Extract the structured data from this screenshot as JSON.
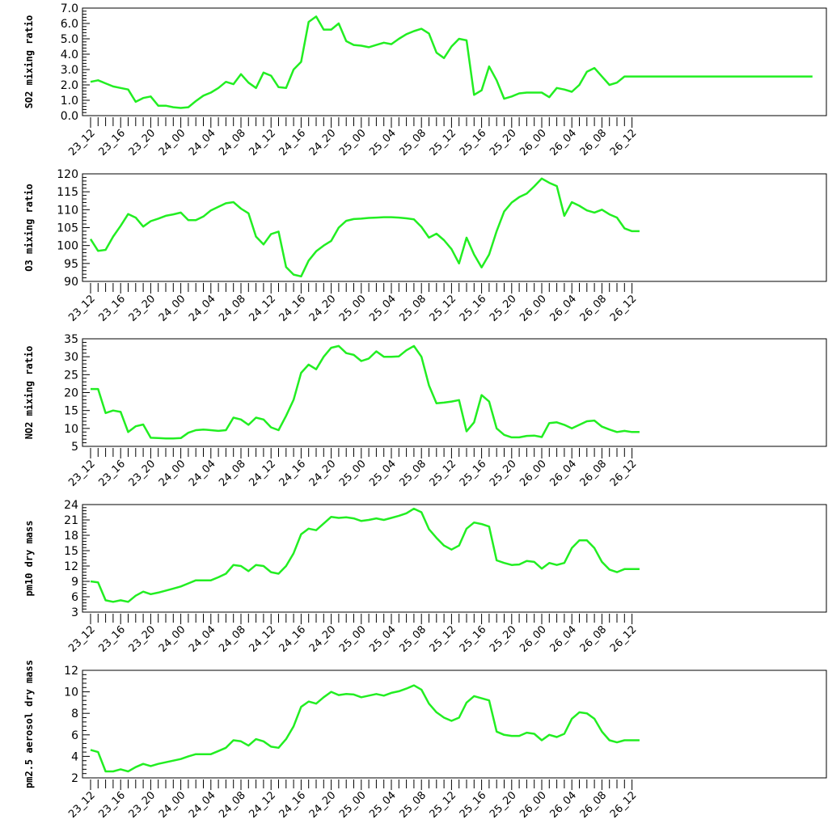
{
  "line_color": "#22ee22",
  "chart_data": [
    {
      "type": "line",
      "ylabel": "SO2 mixing ratio",
      "ylim": [
        0,
        7
      ],
      "yticks": [
        "0.0",
        "1.0",
        "2.0",
        "3.0",
        "4.0",
        "5.0",
        "6.0",
        "7.0"
      ],
      "xlim": [
        0,
        96
      ],
      "xticks": [
        "23_12",
        "23_16",
        "23_20",
        "24_00",
        "24_04",
        "24_08",
        "24_12",
        "24_16",
        "24_20",
        "25_00",
        "25_04",
        "25_08",
        "25_12",
        "25_16",
        "25_20",
        "26_00",
        "26_04",
        "26_08",
        "26_12"
      ],
      "grid": false,
      "x": [
        0,
        1,
        2,
        3,
        4,
        5,
        6,
        7,
        8,
        9,
        10,
        11,
        12,
        13,
        14,
        15,
        16,
        17,
        18,
        19,
        20,
        21,
        22,
        23,
        24,
        25,
        26,
        27,
        28,
        29,
        30,
        31,
        32,
        33,
        34,
        35,
        36,
        37,
        38,
        39,
        40,
        41,
        42,
        43,
        44,
        45,
        46,
        47,
        48,
        49,
        50,
        51,
        52,
        53,
        54,
        55,
        56,
        57,
        58,
        59,
        60,
        61,
        62,
        63,
        64,
        65,
        66,
        67,
        68,
        69,
        70,
        71,
        72,
        73,
        74,
        75,
        76,
        77,
        78,
        79,
        80,
        81,
        82,
        83,
        84,
        85,
        86,
        87,
        88,
        89,
        90,
        91,
        92,
        93,
        94,
        95,
        96
      ],
      "values": [
        2.2,
        2.3,
        2.1,
        1.9,
        1.8,
        1.7,
        0.9,
        1.15,
        1.25,
        0.65,
        0.65,
        0.55,
        0.5,
        0.55,
        0.95,
        1.3,
        1.5,
        1.8,
        2.2,
        2.05,
        2.7,
        2.15,
        1.8,
        2.8,
        2.6,
        1.85,
        1.8,
        3.0,
        3.5,
        6.1,
        6.45,
        5.6,
        5.6,
        6.0,
        4.85,
        4.6,
        4.55,
        4.45,
        4.6,
        4.75,
        4.65,
        5.0,
        5.3,
        5.5,
        5.65,
        5.35,
        4.1,
        3.75,
        4.5,
        5.0,
        4.9,
        1.35,
        1.65,
        3.2,
        2.3,
        1.1,
        1.25,
        1.45,
        1.5,
        1.5,
        1.5,
        1.2,
        1.8,
        1.7,
        1.55,
        2.0,
        2.85,
        3.1,
        2.55,
        2.0,
        2.15,
        2.55,
        2.55,
        2.55,
        2.55,
        2.55,
        2.55,
        2.55,
        2.55,
        2.55,
        2.55,
        2.55,
        2.55,
        2.55,
        2.55,
        2.55,
        2.55,
        2.55,
        2.55,
        2.55,
        2.55,
        2.55,
        2.55,
        2.55,
        2.55,
        2.55,
        2.55
      ]
    },
    {
      "type": "line",
      "ylabel": "O3 mixing ratio",
      "ylim": [
        90,
        120
      ],
      "yticks": [
        "90",
        "95",
        "100",
        "105",
        "110",
        "115",
        "120"
      ],
      "xlim": [
        0,
        96
      ],
      "xticks": [
        "23_12",
        "23_16",
        "23_20",
        "24_00",
        "24_04",
        "24_08",
        "24_12",
        "24_16",
        "24_20",
        "25_00",
        "25_04",
        "25_08",
        "25_12",
        "25_16",
        "25_20",
        "26_00",
        "26_04",
        "26_08",
        "26_12"
      ],
      "grid": false,
      "x": [
        0,
        1,
        2,
        3,
        4,
        5,
        6,
        7,
        8,
        9,
        10,
        11,
        12,
        13,
        14,
        15,
        16,
        17,
        18,
        19,
        20,
        21,
        22,
        23,
        24,
        25,
        26,
        27,
        28,
        29,
        30,
        31,
        32,
        33,
        34,
        35,
        36,
        37,
        38,
        39,
        40,
        41,
        42,
        43,
        44,
        45,
        46,
        47,
        48,
        49,
        50,
        51,
        52,
        53,
        54,
        55,
        56,
        57,
        58,
        59,
        60,
        61,
        62,
        63,
        64,
        65,
        66,
        67,
        68,
        69,
        70,
        71,
        72,
        73
      ],
      "values": [
        101.8,
        98.5,
        98.8,
        102.5,
        105.5,
        108.8,
        107.8,
        105.3,
        106.8,
        107.5,
        108.3,
        108.7,
        109.2,
        107.1,
        107.1,
        108.1,
        109.8,
        110.8,
        111.8,
        112.1,
        110.3,
        109.0,
        102.5,
        100.3,
        103.2,
        103.9,
        94.0,
        91.9,
        91.4,
        95.8,
        98.4,
        100.0,
        101.3,
        105.0,
        106.9,
        107.4,
        107.5,
        107.7,
        107.8,
        107.9,
        107.9,
        107.8,
        107.6,
        107.3,
        105.2,
        102.2,
        103.3,
        101.5,
        99.0,
        95.0,
        102.2,
        97.5,
        93.9,
        97.5,
        104.0,
        109.5,
        112.0,
        113.5,
        114.5,
        116.5,
        118.7,
        117.5,
        116.6,
        108.3,
        112.1,
        111.1,
        109.8,
        109.2,
        110.0,
        108.7,
        107.8,
        104.8,
        104.0,
        104.0
      ]
    },
    {
      "type": "line",
      "ylabel": "NO2 mixing ratio",
      "ylim": [
        5,
        35
      ],
      "yticks": [
        "5",
        "10",
        "15",
        "20",
        "25",
        "30",
        "35"
      ],
      "xlim": [
        0,
        96
      ],
      "xticks": [
        "23_12",
        "23_16",
        "23_20",
        "24_00",
        "24_04",
        "24_08",
        "24_12",
        "24_16",
        "24_20",
        "25_00",
        "25_04",
        "25_08",
        "25_12",
        "25_16",
        "25_20",
        "26_00",
        "26_04",
        "26_08",
        "26_12"
      ],
      "grid": false,
      "x": [
        0,
        1,
        2,
        3,
        4,
        5,
        6,
        7,
        8,
        9,
        10,
        11,
        12,
        13,
        14,
        15,
        16,
        17,
        18,
        19,
        20,
        21,
        22,
        23,
        24,
        25,
        26,
        27,
        28,
        29,
        30,
        31,
        32,
        33,
        34,
        35,
        36,
        37,
        38,
        39,
        40,
        41,
        42,
        43,
        44,
        45,
        46,
        47,
        48,
        49,
        50,
        51,
        52,
        53,
        54,
        55,
        56,
        57,
        58,
        59,
        60,
        61,
        62,
        63,
        64,
        65,
        66,
        67,
        68,
        69,
        70,
        71,
        72,
        73
      ],
      "values": [
        21.0,
        21.0,
        14.3,
        15.0,
        14.6,
        9.0,
        10.6,
        11.1,
        7.4,
        7.3,
        7.2,
        7.2,
        7.3,
        8.8,
        9.5,
        9.7,
        9.5,
        9.3,
        9.5,
        13.0,
        12.5,
        11.0,
        13.0,
        12.5,
        10.3,
        9.5,
        13.5,
        18.0,
        25.5,
        27.8,
        26.5,
        30.0,
        32.5,
        33.0,
        31.0,
        30.5,
        28.8,
        29.5,
        31.5,
        30.0,
        30.0,
        30.1,
        31.8,
        33.0,
        30.0,
        22.0,
        17.0,
        17.2,
        17.5,
        17.9,
        9.2,
        11.7,
        19.3,
        17.5,
        10.0,
        8.2,
        7.5,
        7.5,
        7.9,
        8.0,
        7.6,
        11.5,
        11.7,
        11.0,
        10.0,
        11.0,
        12.0,
        12.2,
        10.5,
        9.7,
        9.0,
        9.3,
        9.0,
        9.0
      ]
    },
    {
      "type": "line",
      "ylabel": "pm10 dry mass",
      "ylim": [
        3,
        24
      ],
      "yticks": [
        "3",
        "6",
        "9",
        "12",
        "15",
        "18",
        "21",
        "24"
      ],
      "xlim": [
        0,
        96
      ],
      "xticks": [
        "23_12",
        "23_16",
        "23_20",
        "24_00",
        "24_04",
        "24_08",
        "24_12",
        "24_16",
        "24_20",
        "25_00",
        "25_04",
        "25_08",
        "25_12",
        "25_16",
        "25_20",
        "26_00",
        "26_04",
        "26_08",
        "26_12"
      ],
      "grid": false,
      "x": [
        0,
        1,
        2,
        3,
        4,
        5,
        6,
        7,
        8,
        9,
        10,
        11,
        12,
        13,
        14,
        15,
        16,
        17,
        18,
        19,
        20,
        21,
        22,
        23,
        24,
        25,
        26,
        27,
        28,
        29,
        30,
        31,
        32,
        33,
        34,
        35,
        36,
        37,
        38,
        39,
        40,
        41,
        42,
        43,
        44,
        45,
        46,
        47,
        48,
        49,
        50,
        51,
        52,
        53,
        54,
        55,
        56,
        57,
        58,
        59,
        60,
        61,
        62,
        63,
        64,
        65,
        66,
        67,
        68,
        69,
        70,
        71,
        72,
        73
      ],
      "values": [
        9.0,
        8.8,
        5.3,
        5.0,
        5.3,
        5.0,
        6.2,
        7.0,
        6.5,
        6.8,
        7.2,
        7.6,
        8.0,
        8.6,
        9.2,
        9.2,
        9.2,
        9.8,
        10.5,
        12.2,
        12.0,
        11.0,
        12.2,
        12.0,
        10.8,
        10.5,
        12.0,
        14.5,
        18.2,
        19.3,
        19.0,
        20.3,
        21.6,
        21.4,
        21.5,
        21.3,
        20.8,
        21.0,
        21.3,
        21.0,
        21.4,
        21.8,
        22.3,
        23.2,
        22.5,
        19.2,
        17.5,
        16.0,
        15.2,
        16.0,
        19.3,
        20.5,
        20.2,
        19.7,
        13.1,
        12.6,
        12.2,
        12.3,
        13.0,
        12.8,
        11.5,
        12.6,
        12.2,
        12.6,
        15.5,
        17.0,
        17.0,
        15.5,
        12.8,
        11.3,
        10.8,
        11.4,
        11.4,
        11.4
      ]
    },
    {
      "type": "line",
      "ylabel": "pm2.5 aerosol dry mass",
      "ylim": [
        2,
        12
      ],
      "yticks": [
        "2",
        "4",
        "6",
        "8",
        "10",
        "12"
      ],
      "xlim": [
        0,
        96
      ],
      "xticks": [
        "23_12",
        "23_16",
        "23_20",
        "24_00",
        "24_04",
        "24_08",
        "24_12",
        "24_16",
        "24_20",
        "25_00",
        "25_04",
        "25_08",
        "25_12",
        "25_16",
        "25_20",
        "26_00",
        "26_04",
        "26_08",
        "26_12"
      ],
      "grid": false,
      "x": [
        0,
        1,
        2,
        3,
        4,
        5,
        6,
        7,
        8,
        9,
        10,
        11,
        12,
        13,
        14,
        15,
        16,
        17,
        18,
        19,
        20,
        21,
        22,
        23,
        24,
        25,
        26,
        27,
        28,
        29,
        30,
        31,
        32,
        33,
        34,
        35,
        36,
        37,
        38,
        39,
        40,
        41,
        42,
        43,
        44,
        45,
        46,
        47,
        48,
        49,
        50,
        51,
        52,
        53,
        54,
        55,
        56,
        57,
        58,
        59,
        60,
        61,
        62,
        63,
        64,
        65,
        66,
        67,
        68,
        69,
        70,
        71,
        72,
        73
      ],
      "values": [
        4.6,
        4.4,
        2.6,
        2.6,
        2.8,
        2.6,
        3.0,
        3.3,
        3.1,
        3.3,
        3.45,
        3.6,
        3.75,
        4.0,
        4.2,
        4.2,
        4.2,
        4.5,
        4.8,
        5.5,
        5.4,
        5.0,
        5.6,
        5.4,
        4.9,
        4.8,
        5.6,
        6.8,
        8.6,
        9.1,
        8.9,
        9.5,
        10.0,
        9.7,
        9.8,
        9.75,
        9.5,
        9.65,
        9.8,
        9.65,
        9.9,
        10.05,
        10.3,
        10.6,
        10.2,
        8.9,
        8.1,
        7.6,
        7.3,
        7.6,
        9.0,
        9.6,
        9.4,
        9.2,
        6.3,
        6.0,
        5.9,
        5.9,
        6.2,
        6.1,
        5.5,
        6.0,
        5.8,
        6.1,
        7.5,
        8.1,
        8.0,
        7.5,
        6.3,
        5.5,
        5.3,
        5.5,
        5.5,
        5.5
      ]
    }
  ]
}
